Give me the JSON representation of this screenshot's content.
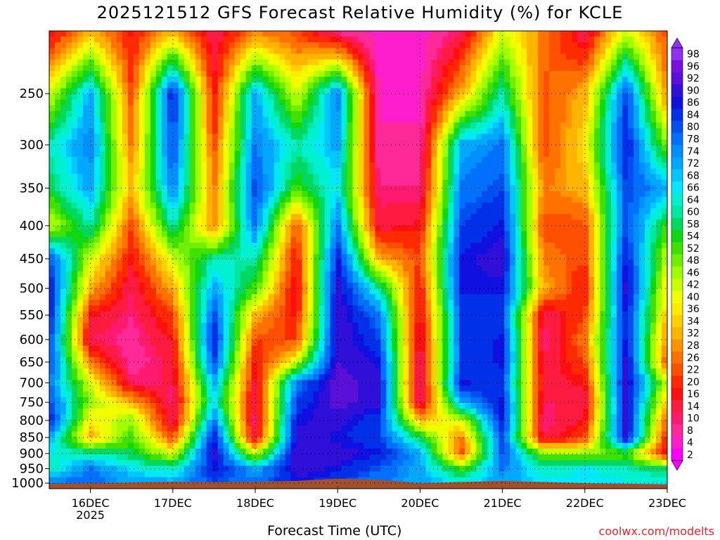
{
  "chart_data": {
    "type": "heatmap",
    "title": "2025121512 GFS Forecast Relative Humidity (%) for KCLE",
    "xlabel": "Forecast Time (UTC)",
    "ylabel": "",
    "x_ticks": [
      "16DEC",
      "17DEC",
      "18DEC",
      "19DEC",
      "20DEC",
      "21DEC",
      "22DEC",
      "23DEC"
    ],
    "x_year_label": "2025",
    "y_ticks": [
      250,
      300,
      350,
      400,
      450,
      500,
      550,
      600,
      650,
      700,
      750,
      800,
      850,
      900,
      950,
      1000
    ],
    "y_scale": "log",
    "y_inverted": true,
    "y_range_hpa": [
      200,
      1020
    ],
    "colorbar_levels": [
      2,
      4,
      8,
      10,
      14,
      16,
      20,
      22,
      26,
      28,
      32,
      34,
      36,
      40,
      42,
      46,
      48,
      52,
      54,
      58,
      60,
      64,
      66,
      68,
      72,
      74,
      78,
      80,
      84,
      86,
      90,
      92,
      96,
      98
    ],
    "colorbar_colors": [
      "#ff00ff",
      "#ff1ecc",
      "#ff2a98",
      "#ff1a70",
      "#ff1a40",
      "#ff1010",
      "#ff2a00",
      "#ff5000",
      "#ff7200",
      "#ff9400",
      "#ffb400",
      "#ffd000",
      "#ffec00",
      "#f0ff00",
      "#c8ff00",
      "#a0ff00",
      "#70f000",
      "#40e000",
      "#10d810",
      "#00d860",
      "#00e8a0",
      "#00f0d0",
      "#00e8ff",
      "#00c8ff",
      "#00a8ff",
      "#0090ff",
      "#0070ff",
      "#0050f0",
      "#0030e8",
      "#1010e0",
      "#3010d8",
      "#5a10d8",
      "#7a10e0",
      "#9030f0"
    ],
    "grid": true,
    "terrain_color": "#a0502d",
    "data_description": "Time-height cross section of relative humidity; rows are pressure levels (hPa), columns are 12-hourly samples 15DEC12Z..23DEC00Z",
    "times": [
      "15DEC12",
      "16DEC00",
      "16DEC12",
      "17DEC00",
      "17DEC12",
      "18DEC00",
      "18DEC12",
      "19DEC00",
      "19DEC12",
      "20DEC00",
      "20DEC12",
      "21DEC00",
      "21DEC12",
      "22DEC00",
      "22DEC12",
      "23DEC00"
    ],
    "levels": [
      200,
      250,
      300,
      350,
      400,
      450,
      500,
      550,
      600,
      650,
      700,
      750,
      800,
      850,
      900,
      950,
      1000
    ],
    "rh": [
      [
        12,
        30,
        15,
        30,
        10,
        25,
        20,
        6,
        2,
        2,
        10,
        40,
        25,
        10,
        40,
        20
      ],
      [
        40,
        70,
        20,
        85,
        15,
        70,
        40,
        75,
        3,
        3,
        30,
        60,
        20,
        30,
        80,
        25
      ],
      [
        60,
        75,
        25,
        80,
        20,
        75,
        60,
        70,
        5,
        5,
        70,
        75,
        20,
        35,
        85,
        45
      ],
      [
        55,
        70,
        30,
        75,
        25,
        80,
        50,
        65,
        8,
        8,
        75,
        80,
        25,
        30,
        80,
        70
      ],
      [
        40,
        60,
        20,
        60,
        25,
        75,
        20,
        75,
        12,
        15,
        80,
        85,
        20,
        20,
        80,
        50
      ],
      [
        80,
        40,
        15,
        40,
        60,
        60,
        15,
        85,
        30,
        20,
        85,
        88,
        25,
        20,
        85,
        40
      ],
      [
        85,
        30,
        10,
        30,
        70,
        50,
        12,
        88,
        60,
        15,
        85,
        85,
        30,
        15,
        88,
        35
      ],
      [
        85,
        15,
        8,
        20,
        80,
        30,
        15,
        90,
        75,
        12,
        80,
        80,
        10,
        20,
        85,
        30
      ],
      [
        82,
        10,
        6,
        15,
        85,
        20,
        20,
        90,
        80,
        10,
        80,
        85,
        8,
        25,
        85,
        25
      ],
      [
        80,
        25,
        5,
        12,
        80,
        15,
        40,
        90,
        85,
        8,
        80,
        85,
        10,
        20,
        88,
        20
      ],
      [
        75,
        40,
        10,
        10,
        70,
        12,
        75,
        92,
        88,
        6,
        85,
        80,
        12,
        15,
        90,
        40
      ],
      [
        80,
        45,
        30,
        8,
        65,
        10,
        80,
        92,
        88,
        8,
        70,
        85,
        10,
        10,
        88,
        30
      ],
      [
        85,
        35,
        45,
        10,
        75,
        8,
        85,
        88,
        80,
        30,
        40,
        85,
        8,
        15,
        88,
        20
      ],
      [
        70,
        30,
        50,
        20,
        85,
        10,
        88,
        85,
        80,
        55,
        25,
        80,
        10,
        20,
        88,
        15
      ],
      [
        65,
        60,
        55,
        40,
        88,
        40,
        90,
        88,
        85,
        70,
        20,
        80,
        45,
        45,
        50,
        12
      ],
      [
        60,
        75,
        65,
        60,
        85,
        70,
        88,
        85,
        78,
        70,
        50,
        75,
        60,
        65,
        60,
        55
      ],
      [
        75,
        78,
        70,
        70,
        80,
        75,
        85,
        80,
        75,
        70,
        65,
        70,
        65,
        65,
        65,
        65
      ]
    ],
    "terrain_surface_hpa": [
      1002,
      1000,
      998,
      995,
      996,
      995,
      992,
      984,
      988,
      1000,
      996,
      992,
      996,
      1000,
      1002,
      1004
    ]
  },
  "footer": {
    "credit": "coolwx.com/modelts"
  }
}
